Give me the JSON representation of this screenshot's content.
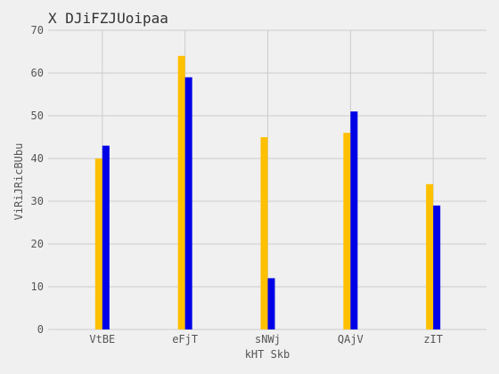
{
  "chart_data": {
    "type": "bar",
    "title": "X DJiFZJUoipaa",
    "xlabel": "kHT Skb",
    "ylabel": "ViRiJRicBUbu",
    "categories": [
      "VtBE",
      "eFjT",
      "sNWj",
      "QAjV",
      "zIT"
    ],
    "series": [
      {
        "values": [
          40,
          64,
          45,
          46,
          34
        ],
        "color": "#ffc000"
      },
      {
        "values": [
          43,
          59,
          12,
          51,
          29
        ],
        "color": "#0000e6"
      }
    ],
    "ylim": [
      0,
      70
    ],
    "yticks": [
      0,
      10,
      20,
      30,
      40,
      50,
      60,
      70
    ],
    "grid": true,
    "background": "#f0f0f0"
  }
}
